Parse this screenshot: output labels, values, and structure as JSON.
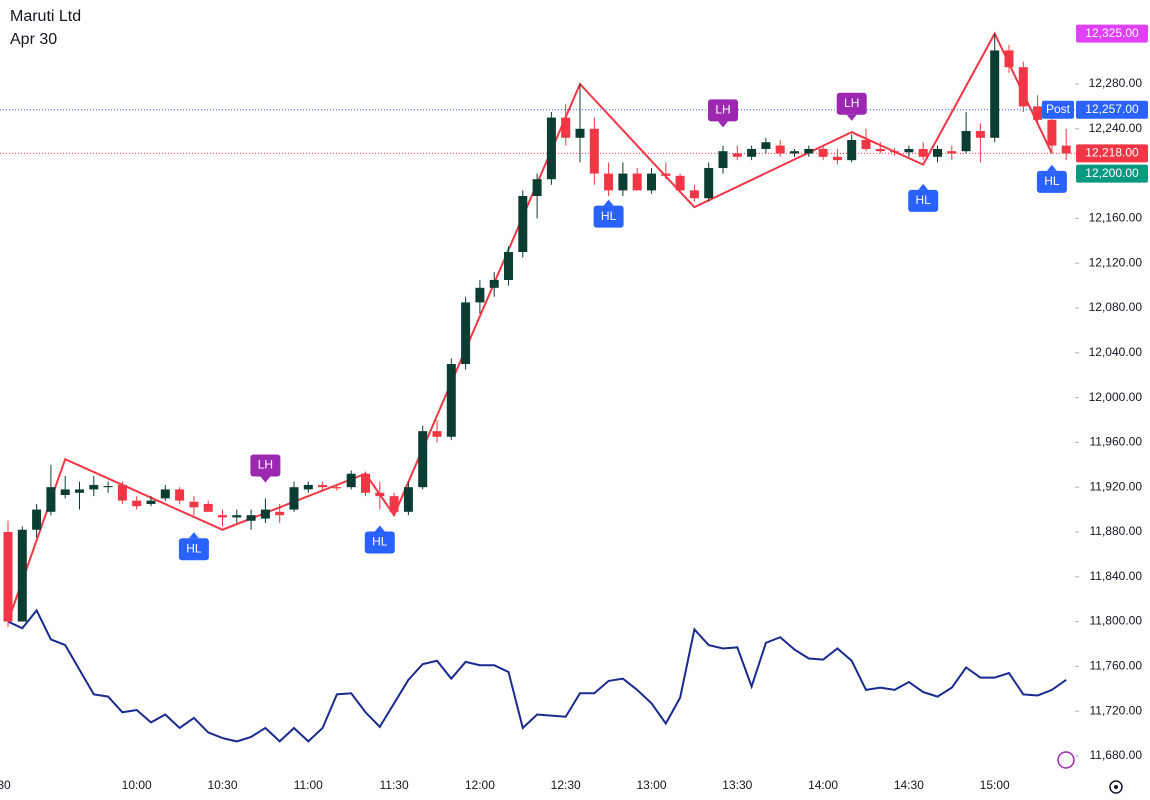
{
  "chart_data": {
    "type": "candlestick",
    "title": "Maruti Ltd",
    "subtitle": "Apr 30",
    "up_color": "#0b3d32",
    "down_color": "#f23645",
    "categories": [
      "30",
      null,
      null,
      null,
      null,
      null,
      null,
      null,
      null,
      "10:00",
      null,
      null,
      null,
      null,
      null,
      "10:30",
      null,
      null,
      null,
      null,
      null,
      "11:00",
      null,
      null,
      null,
      null,
      null,
      "11:30",
      null,
      null,
      null,
      null,
      null,
      "12:00",
      null,
      null,
      null,
      null,
      null,
      "12:30",
      null,
      null,
      null,
      null,
      null,
      "13:00",
      null,
      null,
      null,
      null,
      null,
      "13:30",
      null,
      null,
      null,
      null,
      null,
      "14:00",
      null,
      null,
      null,
      null,
      null,
      "14:30",
      null,
      null,
      null,
      null,
      null,
      "15:00",
      null,
      null,
      null,
      null,
      null
    ],
    "open": [
      11880,
      11800,
      11882,
      11898,
      11913,
      11915,
      11918,
      11920,
      11922,
      11908,
      11905,
      11910,
      11918,
      11907,
      11905,
      11895,
      11893,
      11890,
      11892,
      11898,
      11900,
      11918,
      11922,
      11920,
      11920,
      11932,
      11915,
      11912,
      11898,
      11920,
      11970,
      11965,
      12030,
      12085,
      12098,
      12105,
      12130,
      12180,
      12195,
      12250,
      12232,
      12240,
      12200,
      12185,
      12200,
      12185,
      12200,
      12198,
      12185,
      12178,
      12205,
      12218,
      12215,
      12222,
      12225,
      12218,
      12218,
      12222,
      12215,
      12212,
      12230,
      12222,
      12220,
      12219,
      12222,
      12215,
      12220,
      12220,
      12238,
      12232,
      12310,
      12295,
      12260,
      12248,
      12225
    ],
    "high": [
      11890,
      11885,
      11905,
      11940,
      11930,
      11925,
      11930,
      11925,
      11925,
      11912,
      11912,
      11922,
      11920,
      11912,
      11908,
      11900,
      11900,
      11900,
      11910,
      11905,
      11925,
      11925,
      11925,
      11922,
      11935,
      11934,
      11925,
      11915,
      11925,
      11975,
      11980,
      12035,
      12090,
      12105,
      12112,
      12135,
      12185,
      12200,
      12255,
      12262,
      12280,
      12250,
      12210,
      12210,
      12205,
      12205,
      12210,
      12200,
      12190,
      12210,
      12225,
      12225,
      12225,
      12232,
      12230,
      12222,
      12225,
      12225,
      12222,
      12235,
      12240,
      12228,
      12223,
      12225,
      12228,
      12225,
      12225,
      12255,
      12245,
      12325,
      12315,
      12300,
      12270,
      12255,
      12240
    ],
    "low": [
      11795,
      11800,
      11875,
      11895,
      11910,
      11900,
      11912,
      11915,
      11905,
      11900,
      11903,
      11908,
      11905,
      11895,
      11898,
      11885,
      11888,
      11882,
      11888,
      11888,
      11898,
      11915,
      11918,
      11917,
      11918,
      11912,
      11900,
      11895,
      11895,
      11918,
      11960,
      11962,
      12025,
      12075,
      12090,
      12100,
      12125,
      12160,
      12190,
      12225,
      12210,
      12190,
      12180,
      12180,
      12185,
      12182,
      12195,
      12185,
      12175,
      12175,
      12200,
      12212,
      12212,
      12218,
      12215,
      12215,
      12215,
      12212,
      12208,
      12210,
      12220,
      12218,
      12216,
      12215,
      12212,
      12210,
      12212,
      12218,
      12210,
      12228,
      12290,
      12255,
      12245,
      12218,
      12212
    ],
    "close": [
      11800,
      11882,
      11900,
      11920,
      11918,
      11918,
      11922,
      11921,
      11908,
      11903,
      11908,
      11918,
      11908,
      11902,
      11898,
      11893,
      11895,
      11895,
      11900,
      11895,
      11920,
      11922,
      11920,
      11919,
      11932,
      11915,
      11912,
      11898,
      11920,
      11970,
      11965,
      12030,
      12085,
      12098,
      12105,
      12130,
      12180,
      12195,
      12250,
      12232,
      12240,
      12200,
      12185,
      12200,
      12185,
      12200,
      12198,
      12185,
      12178,
      12205,
      12220,
      12215,
      12222,
      12228,
      12218,
      12220,
      12222,
      12215,
      12212,
      12230,
      12222,
      12220,
      12219,
      12222,
      12215,
      12222,
      12218,
      12238,
      12232,
      12310,
      12295,
      12260,
      12248,
      12225,
      12218
    ],
    "indicator": {
      "color": "#1a2a8f",
      "values": [
        11800,
        11794,
        11810,
        11784,
        11779,
        11757,
        11735,
        11733,
        11719,
        11721,
        11710,
        11717,
        11705,
        11714,
        11701,
        11696,
        11693,
        11697,
        11705,
        11693,
        11705,
        11693,
        11705,
        11735,
        11736,
        11719,
        11706,
        11727,
        11748,
        11762,
        11765,
        11749,
        11764,
        11761,
        11761,
        11755,
        11705,
        11717,
        11716,
        11715,
        11736,
        11736,
        11747,
        11749,
        11739,
        11727,
        11709,
        11732,
        11793,
        11779,
        11776,
        11777,
        11742,
        11781,
        11786,
        11775,
        11767,
        11766,
        11776,
        11765,
        11739,
        11741,
        11739,
        11746,
        11737,
        11733,
        11741,
        11759,
        11750,
        11750,
        11754,
        11735,
        11734,
        11739,
        11748
      ]
    },
    "zigzag": {
      "color": "#f23645",
      "x": [
        0,
        4,
        15,
        25,
        27,
        40,
        48,
        59,
        64,
        69,
        73
      ],
      "y": [
        11800,
        11945,
        11882,
        11932,
        11895,
        12280,
        12170,
        12237,
        12208,
        12325,
        12218
      ]
    },
    "markers": [
      {
        "text": "HL",
        "x": 13,
        "y": 11878,
        "color": "#2962ff"
      },
      {
        "text": "LH",
        "x": 18,
        "y": 11926,
        "color": "#9c27b0"
      },
      {
        "text": "HL",
        "x": 26,
        "y": 11884,
        "color": "#2962ff"
      },
      {
        "text": "HL",
        "x": 42,
        "y": 12175,
        "color": "#2962ff"
      },
      {
        "text": "LH",
        "x": 50,
        "y": 12243,
        "color": "#9c27b0"
      },
      {
        "text": "LH",
        "x": 59,
        "y": 12249,
        "color": "#9c27b0"
      },
      {
        "text": "HL",
        "x": 64,
        "y": 12189,
        "color": "#2962ff"
      },
      {
        "text": "HL",
        "x": 73,
        "y": 12206,
        "color": "#2962ff"
      }
    ],
    "price_labels": [
      {
        "value": 12325,
        "label": "12,325.00",
        "color": "#e040fb"
      },
      {
        "value": 12257,
        "label": "12,257.00",
        "color": "#2962ff",
        "tag": "Post",
        "line": true
      },
      {
        "value": 12218,
        "label": "12,218.00",
        "color": "#f23645",
        "line": true
      },
      {
        "value": 12200,
        "label": "12,200.00",
        "color": "#089981"
      }
    ],
    "ylim": [
      11663,
      12355
    ],
    "yticks": [
      {
        "value": 11680,
        "label": "11,680.00"
      },
      {
        "value": 11720,
        "label": "11,720.00"
      },
      {
        "value": 11760,
        "label": "11,760.00"
      },
      {
        "value": 11800,
        "label": "11,800.00"
      },
      {
        "value": 11840,
        "label": "11,840.00"
      },
      {
        "value": 11880,
        "label": "11,880.00"
      },
      {
        "value": 11920,
        "label": "11,920.00"
      },
      {
        "value": 11960,
        "label": "11,960.00"
      },
      {
        "value": 12000,
        "label": "12,000.00"
      },
      {
        "value": 12040,
        "label": "12,040.00"
      },
      {
        "value": 12080,
        "label": "12,080.00"
      },
      {
        "value": 12120,
        "label": "12,120.00"
      },
      {
        "value": 12160,
        "label": "12,160.00"
      },
      {
        "value": 12240,
        "label": "12,240.00"
      },
      {
        "value": 12280,
        "label": "12,280.00"
      }
    ]
  }
}
